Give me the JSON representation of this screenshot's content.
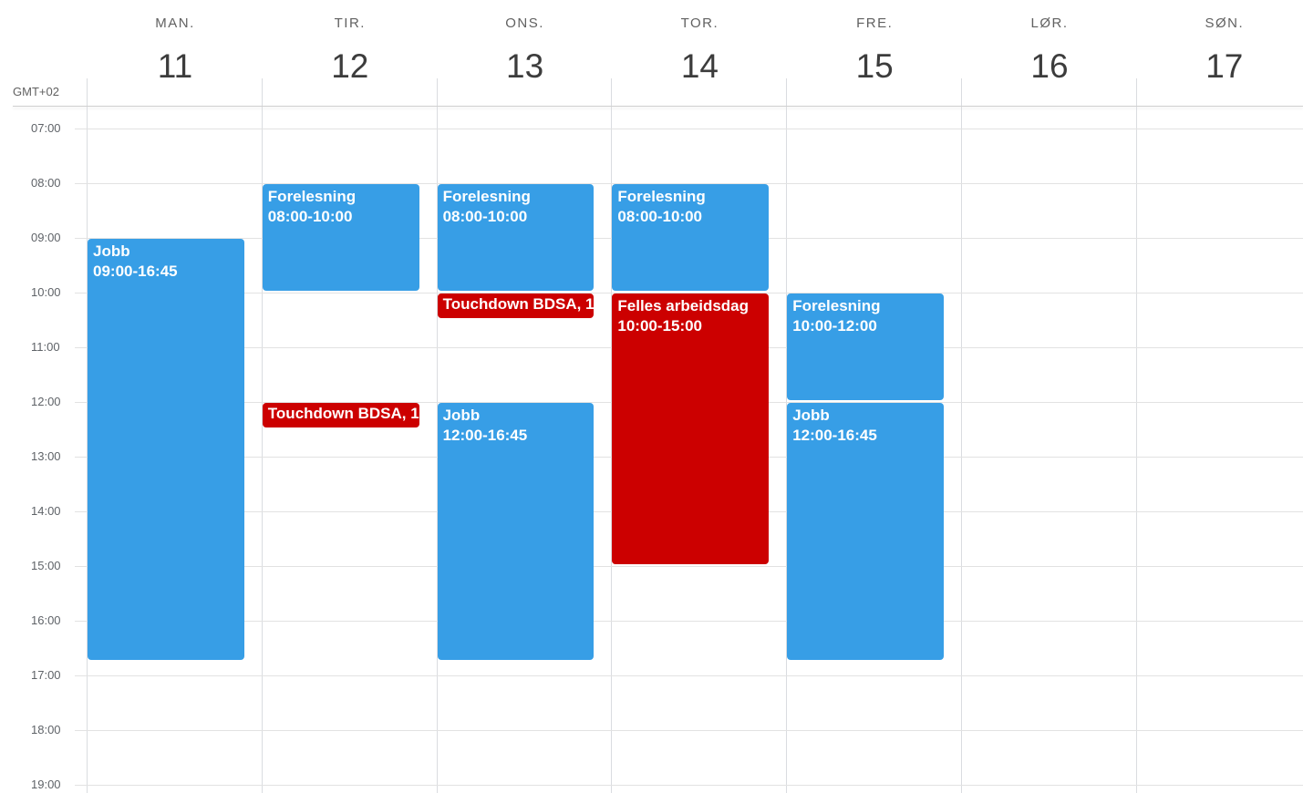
{
  "timezone_label": "GMT+02",
  "days": [
    {
      "name": "MAN.",
      "number": "11"
    },
    {
      "name": "TIR.",
      "number": "12"
    },
    {
      "name": "ONS.",
      "number": "13"
    },
    {
      "name": "TOR.",
      "number": "14"
    },
    {
      "name": "FRE.",
      "number": "15"
    },
    {
      "name": "LØR.",
      "number": "16"
    },
    {
      "name": "SØN.",
      "number": "17"
    }
  ],
  "hours": [
    "07:00",
    "08:00",
    "09:00",
    "10:00",
    "11:00",
    "12:00",
    "13:00",
    "14:00",
    "15:00",
    "16:00",
    "17:00",
    "18:00",
    "19:00"
  ],
  "colors": {
    "event_blue": "#379ee6",
    "event_red": "#cc0000"
  },
  "events": [
    {
      "title": "Jobb",
      "time": "09:00-16:45",
      "day": 0,
      "start": "09:00",
      "end": "16:45",
      "color": "blue"
    },
    {
      "title": "Forelesning",
      "time": "08:00-10:00",
      "day": 1,
      "start": "08:00",
      "end": "10:00",
      "color": "blue"
    },
    {
      "title": "Touchdown BDSA, 1",
      "time": "",
      "day": 1,
      "start": "12:00",
      "end": "12:30",
      "color": "red"
    },
    {
      "title": "Forelesning",
      "time": "08:00-10:00",
      "day": 2,
      "start": "08:00",
      "end": "10:00",
      "color": "blue"
    },
    {
      "title": "Touchdown BDSA, 1",
      "time": "",
      "day": 2,
      "start": "10:00",
      "end": "10:30",
      "color": "red"
    },
    {
      "title": "Jobb",
      "time": "12:00-16:45",
      "day": 2,
      "start": "12:00",
      "end": "16:45",
      "color": "blue"
    },
    {
      "title": "Forelesning",
      "time": "08:00-10:00",
      "day": 3,
      "start": "08:00",
      "end": "10:00",
      "color": "blue"
    },
    {
      "title": "Felles arbeidsdag",
      "time": "10:00-15:00",
      "day": 3,
      "start": "10:00",
      "end": "15:00",
      "color": "red"
    },
    {
      "title": "Forelesning",
      "time": "10:00-12:00",
      "day": 4,
      "start": "10:00",
      "end": "12:00",
      "color": "blue"
    },
    {
      "title": "Jobb",
      "time": "12:00-16:45",
      "day": 4,
      "start": "12:00",
      "end": "16:45",
      "color": "blue"
    }
  ]
}
